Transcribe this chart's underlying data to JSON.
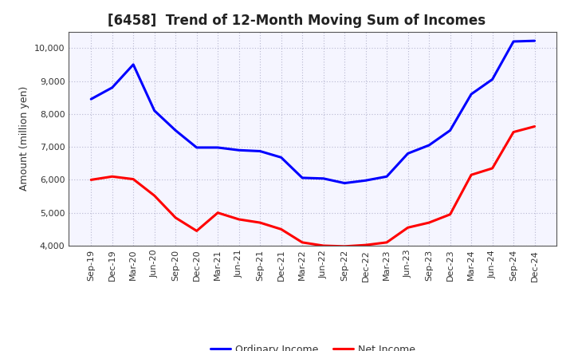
{
  "title": "[6458]  Trend of 12-Month Moving Sum of Incomes",
  "ylabel": "Amount (million yen)",
  "x_labels": [
    "Sep-19",
    "Dec-19",
    "Mar-20",
    "Jun-20",
    "Sep-20",
    "Dec-20",
    "Mar-21",
    "Jun-21",
    "Sep-21",
    "Dec-21",
    "Mar-22",
    "Jun-22",
    "Sep-22",
    "Dec-22",
    "Mar-23",
    "Jun-23",
    "Sep-23",
    "Dec-23",
    "Mar-24",
    "Jun-24",
    "Sep-24",
    "Dec-24"
  ],
  "ordinary_income": [
    8450,
    8800,
    9500,
    8100,
    7500,
    6980,
    6980,
    6900,
    6870,
    6680,
    6060,
    6040,
    5900,
    5980,
    6100,
    6800,
    7050,
    7500,
    8600,
    9050,
    10200,
    10220
  ],
  "net_income": [
    6000,
    6100,
    6020,
    5520,
    4850,
    4450,
    5000,
    4800,
    4700,
    4500,
    4100,
    4000,
    3980,
    4020,
    4100,
    4550,
    4700,
    4950,
    6150,
    6350,
    7450,
    7620
  ],
  "ordinary_color": "#0000ff",
  "net_color": "#ff0000",
  "ylim": [
    4000,
    10500
  ],
  "yticks": [
    4000,
    5000,
    6000,
    7000,
    8000,
    9000,
    10000
  ],
  "background_color": "#ffffff",
  "plot_bg_color": "#f5f5ff",
  "grid_color": "#b0b0cc",
  "line_width": 2.2,
  "title_fontsize": 12,
  "title_color": "#222222",
  "axis_fontsize": 9,
  "tick_fontsize": 8,
  "legend_fontsize": 9
}
